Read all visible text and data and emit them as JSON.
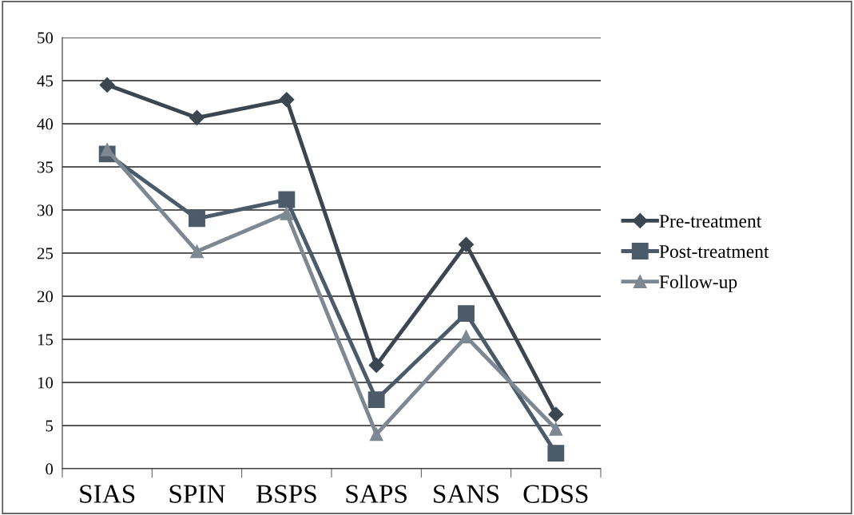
{
  "chart_data": {
    "type": "line",
    "categories": [
      "SIAS",
      "SPIN",
      "BSPS",
      "SAPS",
      "SANS",
      "CDSS"
    ],
    "series": [
      {
        "name": "Pre-treatment",
        "color": "#3b4651",
        "marker": "diamond",
        "values": [
          44.5,
          40.7,
          42.8,
          12,
          26,
          6.3
        ]
      },
      {
        "name": "Post-treatment",
        "color": "#4b5b69",
        "marker": "square",
        "values": [
          36.5,
          29,
          31.2,
          8,
          18,
          1.8
        ]
      },
      {
        "name": "Follow-up",
        "color": "#7d8892",
        "marker": "triangle",
        "values": [
          37,
          25.2,
          29.6,
          4,
          15.3,
          4.6
        ]
      }
    ],
    "ylim": [
      0,
      50
    ],
    "yticks": [
      0,
      5,
      10,
      15,
      20,
      25,
      30,
      35,
      40,
      45,
      50
    ],
    "grid": "y",
    "legend": "right",
    "line_style": "solid"
  }
}
